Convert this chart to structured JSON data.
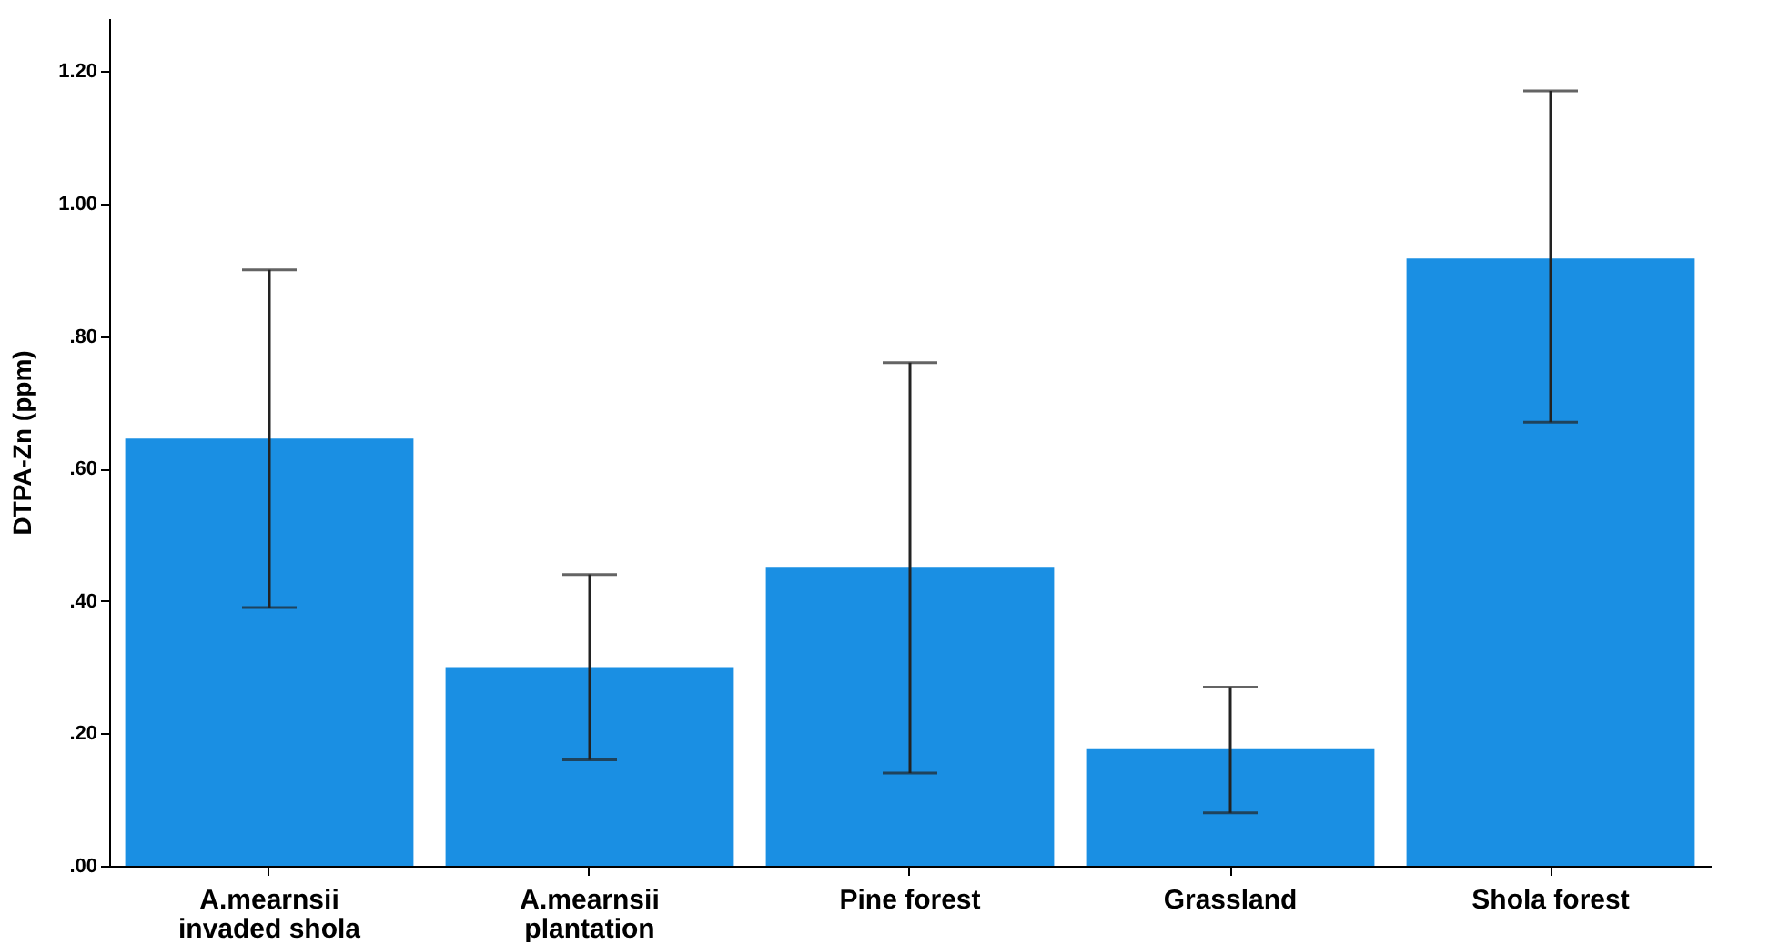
{
  "chart_data": {
    "type": "bar",
    "ylabel": "DTPA-Zn (ppm)",
    "categories": [
      "A.mearnsii invaded shola",
      "A.mearnsii plantation",
      "Pine forest",
      "Grassland",
      "Shola forest"
    ],
    "values": [
      0.645,
      0.3,
      0.45,
      0.176,
      0.917
    ],
    "errors": [
      [
        0.39,
        0.9
      ],
      [
        0.16,
        0.44
      ],
      [
        0.14,
        0.76
      ],
      [
        0.08,
        0.27
      ],
      [
        0.67,
        1.17
      ]
    ],
    "color": "#1a8fe3",
    "ylim": [
      0,
      1.28
    ],
    "yticks": [
      {
        "value": 0,
        "label": ".00"
      },
      {
        "value": 0.2,
        "label": ".20"
      },
      {
        "value": 0.4,
        "label": ".40"
      },
      {
        "value": 0.6,
        "label": ".60"
      },
      {
        "value": 0.8,
        "label": ".80"
      },
      {
        "value": 1.0,
        "label": "1.00"
      },
      {
        "value": 1.2,
        "label": "1.20"
      }
    ],
    "grid": false
  }
}
